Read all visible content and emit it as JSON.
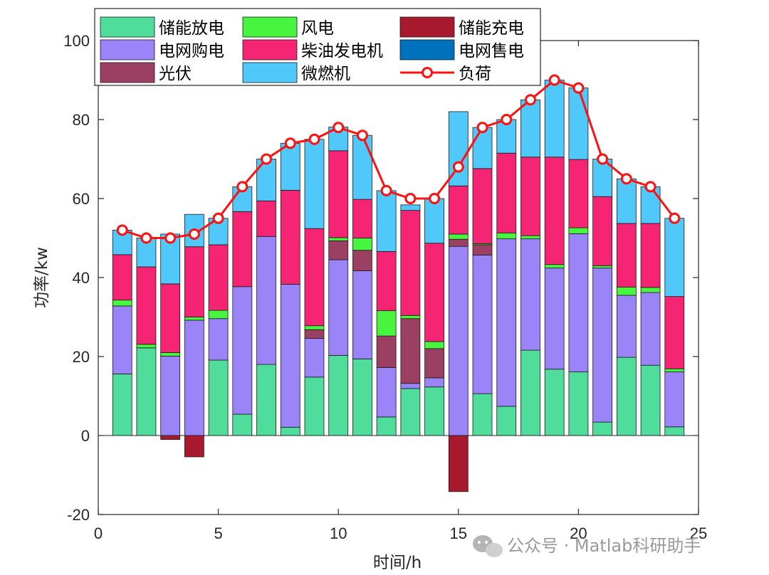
{
  "chart_data": {
    "type": "bar",
    "stacked": true,
    "xlabel": "时间/h",
    "ylabel": "功率/kw",
    "xlim": [
      0,
      25
    ],
    "ylim": [
      -20,
      100
    ],
    "xticks": [
      0,
      5,
      10,
      15,
      20,
      25
    ],
    "yticks": [
      -20,
      0,
      20,
      40,
      60,
      80,
      100
    ],
    "x": [
      1,
      2,
      3,
      4,
      5,
      6,
      7,
      8,
      9,
      10,
      11,
      12,
      13,
      14,
      15,
      16,
      17,
      18,
      19,
      20,
      21,
      22,
      23,
      24
    ],
    "series": [
      {
        "name": "储能放电",
        "color": "#50DC9A",
        "values": [
          15.6,
          22.2,
          0,
          0,
          19.1,
          5.4,
          18,
          2.1,
          14.8,
          20.3,
          19.4,
          4.7,
          11.9,
          12.3,
          0,
          10.6,
          7.4,
          21.6,
          16.8,
          16.1,
          3.4,
          19.8,
          17.8,
          2.2
        ]
      },
      {
        "name": "电网购电",
        "color": "#9A84F7",
        "values": [
          17.2,
          0,
          20.1,
          29.2,
          10.5,
          32.3,
          32.4,
          36.2,
          9.8,
          24.2,
          22.3,
          12.5,
          1.3,
          2.3,
          47.9,
          35.1,
          42.4,
          28.2,
          25.6,
          35,
          39,
          15.7,
          18.4,
          13.9
        ]
      },
      {
        "name": "光伏",
        "color": "#9B4063",
        "values": [
          0,
          0,
          0,
          0,
          0,
          0,
          0,
          0,
          2.2,
          4.8,
          5.2,
          8,
          16.4,
          7.4,
          1.8,
          2.6,
          0,
          0,
          0,
          0,
          0,
          0,
          0,
          0
        ]
      },
      {
        "name": "风电",
        "color": "#48F53E",
        "values": [
          1.5,
          0.9,
          0.9,
          0.8,
          2.1,
          0,
          0,
          0,
          1,
          0.8,
          3.1,
          6.4,
          0.8,
          1.8,
          1.3,
          0.3,
          1.5,
          0.8,
          0.9,
          1.5,
          0.6,
          2.1,
          1.3,
          0.8
        ]
      },
      {
        "name": "柴油发电机",
        "color": "#F52573",
        "values": [
          11.5,
          19.6,
          17.4,
          17.8,
          16.6,
          19,
          9,
          23.8,
          24.6,
          22,
          9.8,
          15,
          26.6,
          24.9,
          12.2,
          19,
          20.2,
          19.9,
          27.2,
          17.3,
          17.5,
          16.1,
          16.2,
          18.3
        ]
      },
      {
        "name": "微燃机",
        "color": "#50C8FA",
        "values": [
          6.2,
          7.3,
          12.6,
          8.2,
          6.7,
          6.3,
          10.6,
          11.9,
          22.6,
          6,
          16.2,
          15.4,
          1.4,
          11.3,
          18.8,
          10.4,
          8.5,
          14.5,
          19.5,
          18.1,
          9.5,
          11.3,
          9.3,
          19.8
        ]
      },
      {
        "name": "储能充电",
        "color": "#A8192E",
        "values": [
          0,
          0,
          -1,
          -5.4,
          0,
          0,
          0,
          0,
          0,
          0,
          0,
          0,
          0,
          0,
          -14.2,
          0,
          0,
          0,
          0,
          0,
          0,
          0,
          0,
          0
        ]
      },
      {
        "name": "电网售电",
        "color": "#0072BD",
        "values": [
          0,
          0,
          0,
          0,
          0,
          0,
          0,
          0,
          0,
          0,
          0,
          0,
          0,
          0,
          0,
          0,
          0,
          0,
          0,
          0,
          0,
          0,
          0,
          0
        ]
      }
    ],
    "load": {
      "name": "负荷",
      "color": "#FF1010",
      "values": [
        52,
        50,
        50,
        51,
        55,
        63,
        70,
        74,
        75,
        78,
        76,
        62,
        60,
        60,
        68,
        78,
        80,
        85,
        90,
        88,
        70,
        65,
        63,
        55
      ]
    },
    "legend": {
      "placement": "top-left",
      "order": [
        "储能放电",
        "风电",
        "储能充电",
        "电网购电",
        "柴油发电机",
        "电网售电",
        "光伏",
        "微燃机",
        "负荷"
      ]
    },
    "grid": false
  },
  "watermark": {
    "text": "公众号 · Matlab科研助手",
    "icon": "wechat-icon"
  }
}
